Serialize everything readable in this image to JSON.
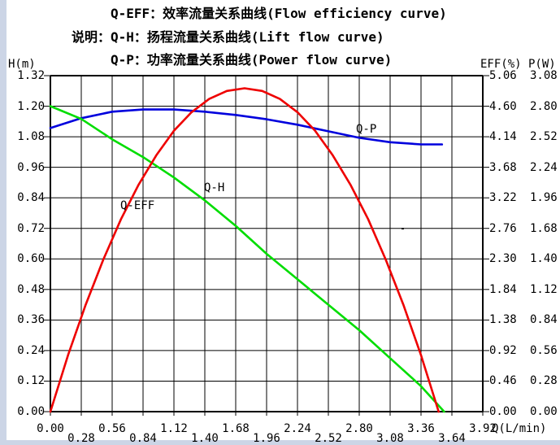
{
  "window": {
    "edge_color": "#ccd5e6",
    "background": "#ffffff"
  },
  "legend": {
    "label": "说明：",
    "lines": [
      "Q-EFF：效率流量关系曲线(Flow efficiency curve)",
      "Q-H：扬程流量关系曲线(Lift flow curve)",
      "Q-P：功率流量关系曲线(Power flow curve)"
    ]
  },
  "chart_data": {
    "type": "line",
    "grid": true,
    "grid_color": "#000000",
    "x_axis": {
      "label": "Q(L/min)",
      "min": 0,
      "max": 3.92,
      "ticks": [
        "0.00",
        "0.28",
        "0.56",
        "0.84",
        "1.12",
        "1.40",
        "1.68",
        "1.96",
        "2.24",
        "2.52",
        "2.80",
        "3.08",
        "3.36",
        "3.64",
        "3.92"
      ]
    },
    "y_axes": [
      {
        "id": "h",
        "label": "H(m)",
        "side": "left",
        "min": 0,
        "max": 1.32,
        "ticks": [
          "1.32",
          "1.20",
          "1.08",
          "0.96",
          "0.84",
          "0.72",
          "0.60",
          "0.48",
          "0.36",
          "0.24",
          "0.12",
          "0.00"
        ]
      },
      {
        "id": "eff",
        "label": "EFF(%)",
        "side": "right",
        "min": 0,
        "max": 5.06,
        "ticks": [
          "5.06",
          "4.60",
          "4.14",
          "3.68",
          "3.22",
          "2.76",
          "2.30",
          "1.84",
          "1.38",
          "0.92",
          "0.46",
          "0.00"
        ]
      },
      {
        "id": "p",
        "label": "P(W)",
        "side": "right",
        "min": 0,
        "max": 3.08,
        "ticks": [
          "3.08",
          "2.80",
          "2.52",
          "2.24",
          "1.96",
          "1.68",
          "1.40",
          "1.12",
          "0.84",
          "0.56",
          "0.28",
          "0.00"
        ]
      }
    ],
    "series": [
      {
        "name": "Q-P",
        "axis": "p",
        "color": "#0000dd",
        "x": [
          0.0,
          0.28,
          0.56,
          0.84,
          1.12,
          1.4,
          1.68,
          1.96,
          2.24,
          2.52,
          2.8,
          3.08,
          3.36,
          3.55
        ],
        "y": [
          2.6,
          2.69,
          2.75,
          2.77,
          2.77,
          2.75,
          2.72,
          2.68,
          2.63,
          2.57,
          2.51,
          2.47,
          2.45,
          2.45
        ]
      },
      {
        "name": "Q-H",
        "axis": "h",
        "color": "#00dd00",
        "x": [
          0.0,
          0.28,
          0.56,
          0.84,
          1.12,
          1.4,
          1.68,
          1.96,
          2.24,
          2.52,
          2.8,
          3.08,
          3.36,
          3.57
        ],
        "y": [
          1.2,
          1.15,
          1.07,
          1.0,
          0.92,
          0.83,
          0.73,
          0.62,
          0.52,
          0.42,
          0.32,
          0.21,
          0.1,
          0.0
        ]
      },
      {
        "name": "Q-EFF",
        "axis": "eff",
        "color": "#ee0000",
        "x": [
          0.0,
          0.16,
          0.32,
          0.48,
          0.64,
          0.8,
          0.96,
          1.12,
          1.28,
          1.44,
          1.6,
          1.76,
          1.92,
          2.08,
          2.24,
          2.4,
          2.56,
          2.72,
          2.88,
          3.04,
          3.2,
          3.36,
          3.52
        ],
        "y": [
          0.0,
          0.85,
          1.61,
          2.29,
          2.9,
          3.42,
          3.86,
          4.23,
          4.51,
          4.71,
          4.83,
          4.87,
          4.83,
          4.71,
          4.51,
          4.23,
          3.86,
          3.42,
          2.9,
          2.29,
          1.61,
          0.85,
          0.0
        ]
      }
    ]
  }
}
